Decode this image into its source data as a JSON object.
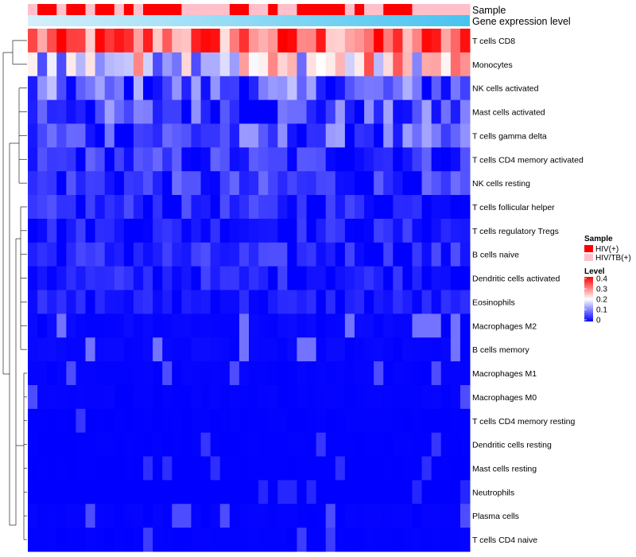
{
  "chart_data": {
    "type": "heatmap",
    "annotation_rows": [
      "Sample",
      "Gene expression level"
    ],
    "row_labels": [
      "T cells CD8",
      "Monocytes",
      "NK cells activated",
      "Mast cells activated",
      "T cells gamma delta",
      "T cells CD4 memory activated",
      "NK cells resting",
      "T cells follicular helper",
      "T cells regulatory  Tregs",
      "B cells naive",
      "Dendritic cells activated",
      "Eosinophils",
      "Macrophages M2",
      "B cells memory",
      "Macrophages M1",
      "Macrophages M0",
      "T cells CD4 memory resting",
      "Dendritic cells resting",
      "Mast cells resting",
      "Neutrophils",
      "Plasma cells",
      "T cells CD4 naive"
    ],
    "n_columns": 46,
    "sample_groups": [
      "HIV(+)",
      "HIV/TB(+)"
    ],
    "sample_pattern": "PHHPHHPHHPHPHHHHPPPPPHHPPHPPHHHHHPHPPHHHPPPPPP",
    "row_means": [
      0.3,
      0.16,
      0.07,
      0.06,
      0.06,
      0.04,
      0.04,
      0.03,
      0.025,
      0.03,
      0.025,
      0.02,
      0.01,
      0.01,
      0.005,
      0.005,
      0.002,
      0.002,
      0.001,
      0.0,
      0.005,
      0.003
    ],
    "value_range": [
      0,
      0.4
    ],
    "legend": {
      "sample_title": "Sample",
      "entries": [
        {
          "label": "HIV(+)",
          "color": "#ff0000"
        },
        {
          "label": "HIV/TB(+)",
          "color": "#ffc0cb"
        }
      ],
      "level_title": "Level",
      "level_ticks": [
        "0.4",
        "0.3",
        "0.2",
        "0.1",
        "0"
      ],
      "color_low": "#0000ff",
      "color_mid": "#ffffff",
      "color_high": "#ff0000"
    },
    "gradient_colors": [
      "#d6f0fb",
      "#47c3f0"
    ]
  }
}
